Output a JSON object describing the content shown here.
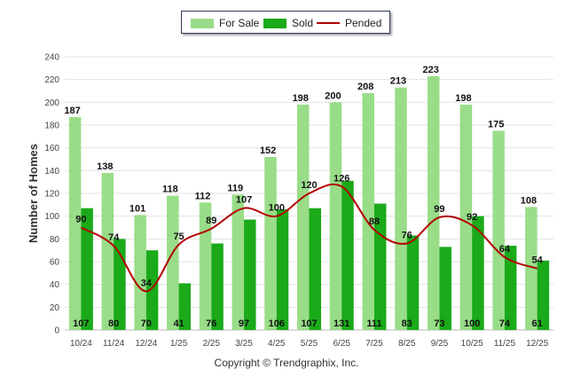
{
  "chart_data": {
    "type": "bar",
    "title": "",
    "xlabel": "",
    "ylabel": "Number of Homes",
    "ylim": [
      0,
      240
    ],
    "yticks": [
      0,
      20,
      40,
      60,
      80,
      100,
      120,
      140,
      160,
      180,
      200,
      220,
      240
    ],
    "grid": true,
    "legend_position": "top-center",
    "categories": [
      "10/24",
      "11/24",
      "12/24",
      "1/25",
      "2/25",
      "3/25",
      "4/25",
      "5/25",
      "6/25",
      "7/25",
      "8/25",
      "9/25",
      "10/25",
      "11/25",
      "12/25"
    ],
    "series": [
      {
        "name": "For Sale",
        "kind": "bar",
        "color": "#99dd88",
        "values": [
          187,
          138,
          101,
          118,
          112,
          119,
          152,
          198,
          200,
          208,
          213,
          223,
          198,
          175,
          108
        ]
      },
      {
        "name": "Sold",
        "kind": "bar",
        "color": "#1aaa1a",
        "values": [
          107,
          80,
          70,
          41,
          76,
          97,
          106,
          107,
          131,
          111,
          83,
          73,
          100,
          74,
          61
        ]
      },
      {
        "name": "Pended",
        "kind": "line",
        "color": "#b30000",
        "values": [
          90,
          74,
          34,
          75,
          89,
          107,
          100,
          120,
          126,
          88,
          76,
          99,
          92,
          64,
          54
        ]
      }
    ]
  },
  "footer": {
    "copyright": "Copyright © Trendgraphix, Inc."
  }
}
